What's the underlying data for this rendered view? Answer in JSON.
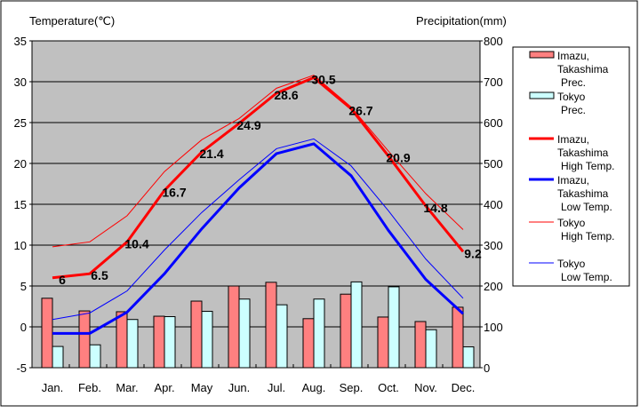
{
  "chart_data": {
    "type": "bar+line",
    "ylabel_left": "Temperature(℃)",
    "ylabel_right": "Precipitation(mm)",
    "ylim_left": [
      -5,
      35
    ],
    "ylim_right": [
      0,
      800
    ],
    "yticks_left": [
      "35",
      "30",
      "25",
      "20",
      "15",
      "10",
      "5",
      "0",
      "-5"
    ],
    "yticks_right": [
      "800",
      "700",
      "600",
      "500",
      "400",
      "300",
      "200",
      "100",
      "0"
    ],
    "categories": [
      "Jan.",
      "Feb.",
      "Mar.",
      "Apr.",
      "May",
      "Jun.",
      "Jul.",
      "Aug.",
      "Sep.",
      "Oct.",
      "Nov.",
      "Dec."
    ],
    "grid": true,
    "legend_position": "right",
    "bar_series": [
      {
        "name": "Imazu,\nTakashima\nPrec.",
        "color": "#ff8080",
        "values": [
          170,
          139,
          137,
          126,
          163,
          200,
          209,
          120,
          180,
          124,
          113,
          148
        ]
      },
      {
        "name": "Tokyo\nPrec.",
        "color": "#ccffff",
        "values": [
          52,
          56,
          118,
          125,
          138,
          168,
          154,
          168,
          210,
          198,
          93,
          51
        ]
      }
    ],
    "line_series": [
      {
        "name": "Imazu,\nTakashima\nHigh Temp.",
        "color": "#ff0000",
        "width": "thick",
        "values": [
          6,
          6.5,
          10.4,
          16.7,
          21.4,
          24.9,
          28.6,
          30.5,
          26.7,
          20.9,
          14.8,
          9.2
        ],
        "labels": [
          "6",
          "6.5",
          "10.4",
          "16.7",
          "21.4",
          "24.9",
          "28.6",
          "30.5",
          "26.7",
          "20.9",
          "14.8",
          "9.2"
        ]
      },
      {
        "name": "Imazu,\nTakashima\nLow Temp.",
        "color": "#0000ff",
        "width": "thick",
        "values": [
          -0.8,
          -0.8,
          1.8,
          6.5,
          12.0,
          17.0,
          21.2,
          22.4,
          18.5,
          11.8,
          5.8,
          1.6
        ]
      },
      {
        "name": "Tokyo\nHigh Temp.",
        "color": "#ff0000",
        "width": "thin",
        "values": [
          9.8,
          10.4,
          13.6,
          19.0,
          22.9,
          25.5,
          29.2,
          30.8,
          26.9,
          21.5,
          16.3,
          11.9
        ]
      },
      {
        "name": "Tokyo\nLow Temp.",
        "color": "#0000ff",
        "width": "thin",
        "values": [
          0.9,
          1.7,
          4.4,
          9.4,
          14.0,
          18.0,
          21.8,
          23.0,
          19.7,
          14.2,
          8.3,
          3.5
        ]
      }
    ]
  }
}
